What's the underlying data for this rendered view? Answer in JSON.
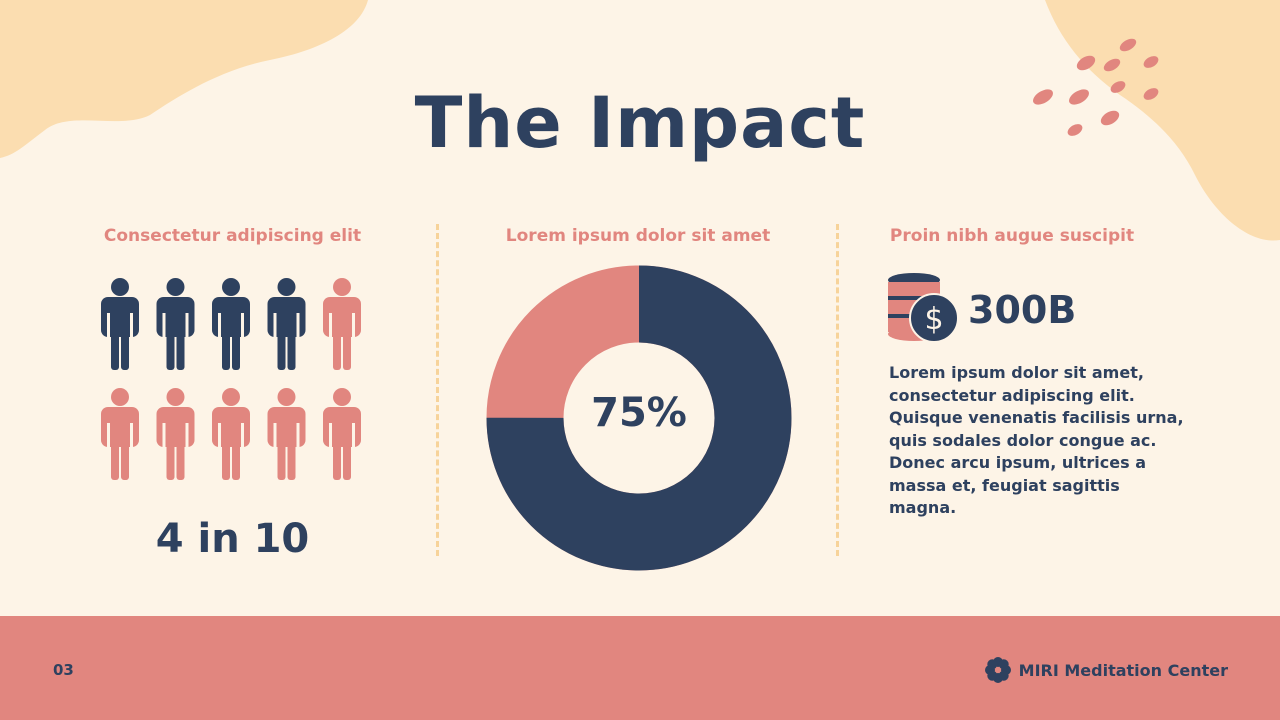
{
  "title": "The Impact",
  "columns": [
    {
      "heading": "Consectetur adipiscing elit",
      "stat": "4 in 10"
    },
    {
      "heading": "Lorem ipsum dolor sit amet",
      "stat": "75%"
    },
    {
      "heading": "Proin nibh augue suscipit",
      "stat": "300B",
      "body": "Lorem ipsum dolor sit amet, consectetur adipiscing elit. Quisque venenatis facilisis urna, quis sodales dolor congue ac. Donec arcu ipsum, ultrices a massa et, feugiat sagittis magna."
    }
  ],
  "pictogram": {
    "highlighted": 4,
    "total": 10
  },
  "donut": {
    "value": 75,
    "remainder": 25
  },
  "footer": {
    "page": "03",
    "brand": "MIRI Meditation Center"
  },
  "icons": {
    "coin": "dollar-coin-stack-icon",
    "brand": "lotus-flower-icon"
  },
  "colors": {
    "navy": "#2E415F",
    "pink": "#E1867F",
    "cream": "#FDF4E7",
    "peach": "#FBDDB0"
  }
}
